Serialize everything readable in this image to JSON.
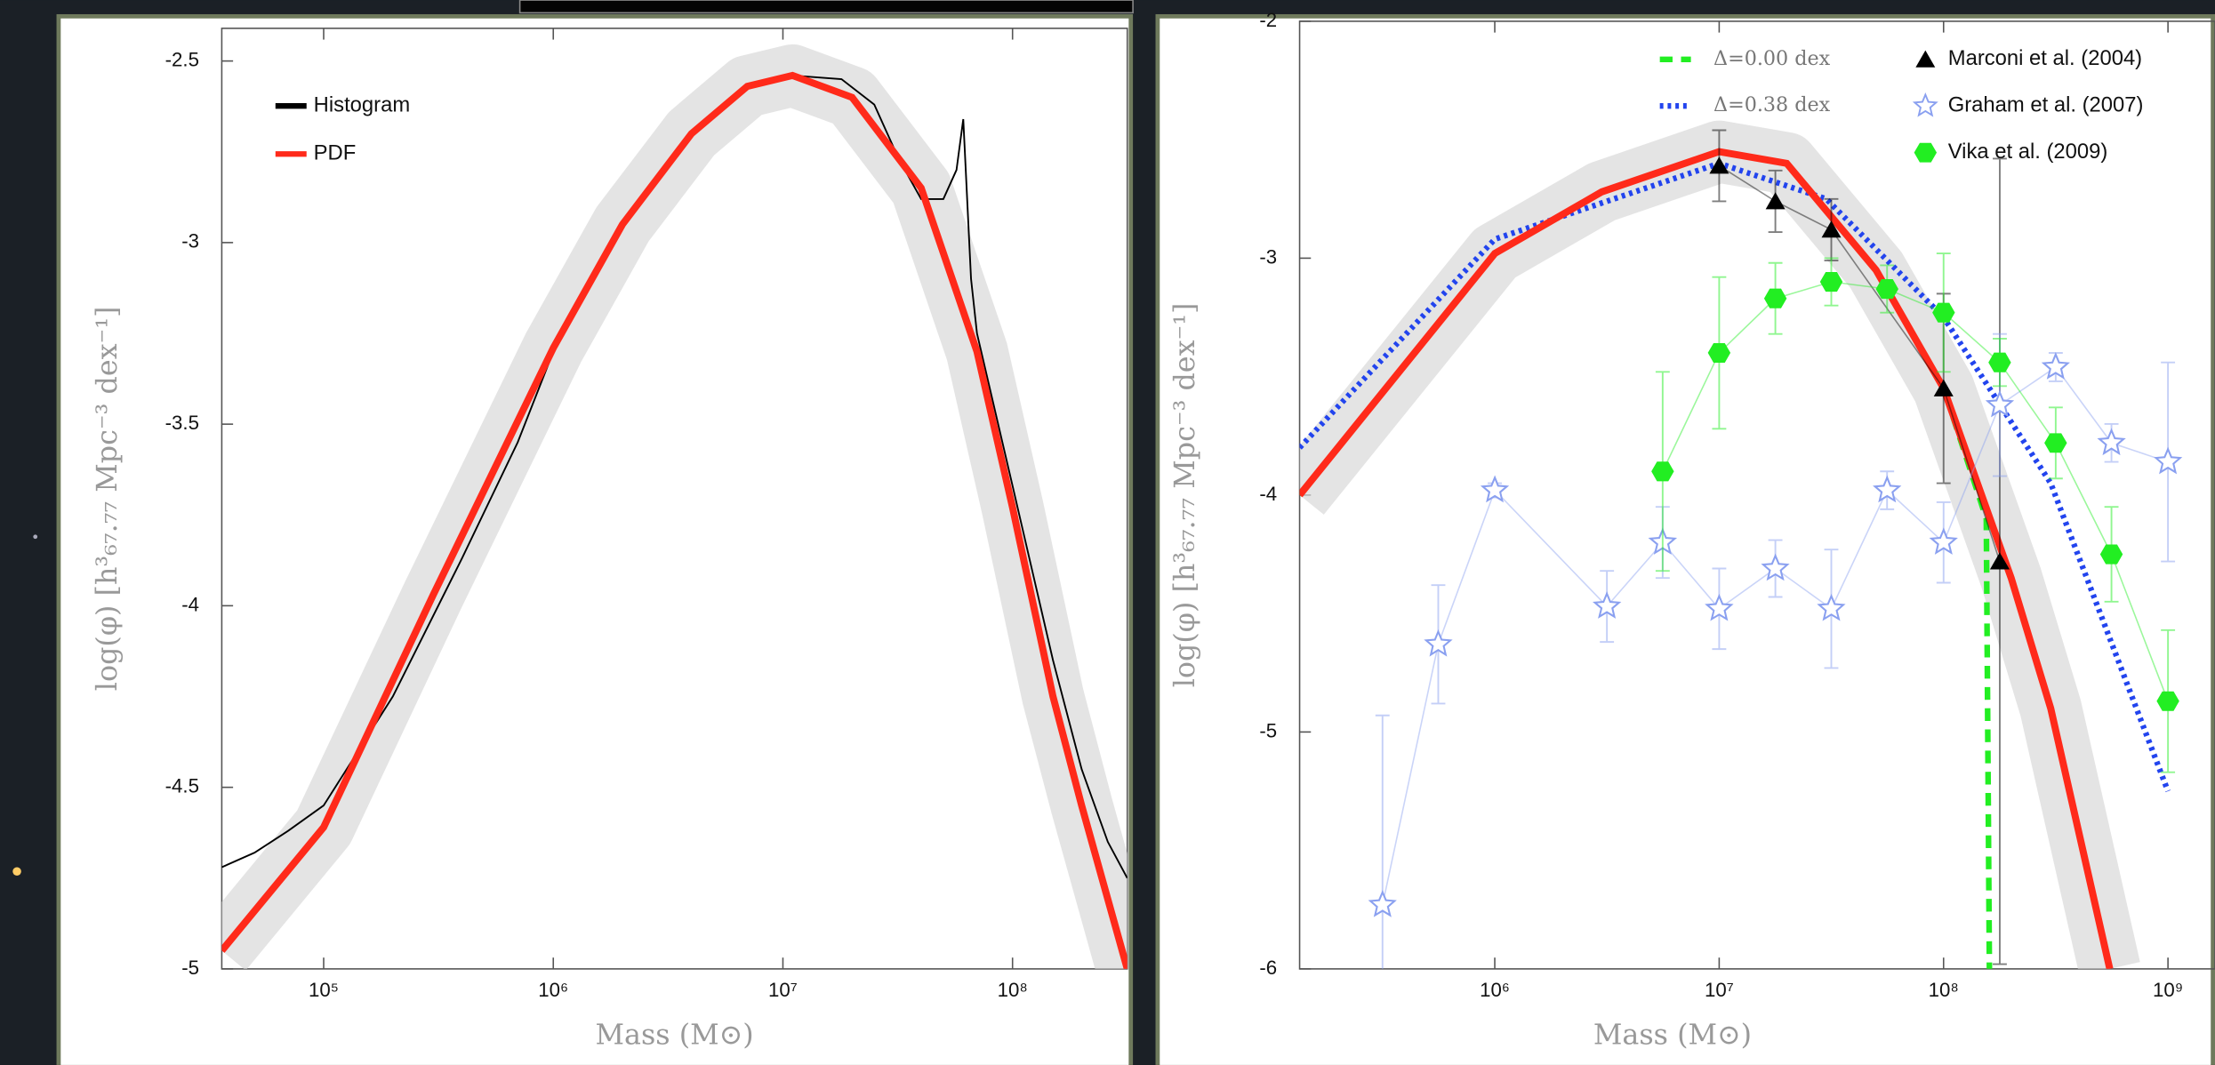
{
  "chart_data": [
    {
      "type": "line",
      "xscale": "log",
      "xlim": [
        36000,
        316000000
      ],
      "ylim": [
        -5,
        -2.41
      ],
      "xticks": [
        {
          "value": 100000,
          "label": "10⁵"
        },
        {
          "value": 1000000,
          "label": "10⁶"
        },
        {
          "value": 10000000,
          "label": "10⁷"
        },
        {
          "value": 100000000,
          "label": "10⁸"
        }
      ],
      "yticks": [
        -2.5,
        -3,
        -3.5,
        -4,
        -4.5,
        -5
      ],
      "xlabel": "Mass (M⊙)",
      "ylabel": "log(φ)  [h³₆₇.₇₇  Mpc⁻³  dex⁻¹]",
      "series": [
        {
          "name": "Histogram",
          "color": "#000000",
          "style": "solid",
          "x": [
            36000,
            50000,
            70000,
            100000,
            200000,
            400000,
            700000,
            1000000,
            2000000,
            4000000,
            7000000,
            11000000,
            18000000,
            25000000,
            32000000,
            40000000,
            50000000,
            57000000,
            61000000,
            66000000,
            70000000,
            100000000,
            150000000,
            200000000,
            260000000,
            316000000
          ],
          "values": [
            -4.72,
            -4.68,
            -4.62,
            -4.55,
            -4.25,
            -3.87,
            -3.55,
            -3.3,
            -2.95,
            -2.7,
            -2.57,
            -2.54,
            -2.55,
            -2.62,
            -2.77,
            -2.88,
            -2.88,
            -2.8,
            -2.66,
            -3.1,
            -3.25,
            -3.67,
            -4.15,
            -4.45,
            -4.65,
            -4.75
          ]
        },
        {
          "name": "PDF",
          "color": "#ff2a1a",
          "style": "solid",
          "band": true,
          "x": [
            36000,
            100000,
            300000,
            1000000,
            2000000,
            4000000,
            7000000,
            11000000,
            20000000,
            40000000,
            70000000,
            100000000,
            150000000,
            200000000,
            316000000
          ],
          "values": [
            -4.95,
            -4.61,
            -3.97,
            -3.29,
            -2.95,
            -2.7,
            -2.57,
            -2.54,
            -2.6,
            -2.85,
            -3.3,
            -3.73,
            -4.25,
            -4.55,
            -5.0
          ]
        }
      ]
    },
    {
      "type": "line",
      "xscale": "log",
      "xlim": [
        135000,
        1620000000
      ],
      "ylim": [
        -6,
        -2
      ],
      "xticks": [
        {
          "value": 1000000,
          "label": "10⁶"
        },
        {
          "value": 10000000,
          "label": "10⁷"
        },
        {
          "value": 100000000,
          "label": "10⁸"
        },
        {
          "value": 1000000000,
          "label": "10⁹"
        }
      ],
      "yticks": [
        -2,
        -3,
        -4,
        -5,
        -6
      ],
      "xlabel": "Mass (M⊙)",
      "ylabel": "log(φ)  [h³₆₇.₇₇  Mpc⁻³  dex⁻¹]",
      "series": [
        {
          "name": "Δ=0.00 dex",
          "color": "#22ee22",
          "style": "dashed",
          "x": [
            135000,
            1000000,
            3000000,
            10000000,
            20000000,
            50000000,
            100000000,
            155000000,
            160000000
          ],
          "values": [
            -4.0,
            -2.98,
            -2.72,
            -2.55,
            -2.6,
            -3.05,
            -3.55,
            -4.1,
            -6
          ]
        },
        {
          "name": "Δ=0.38 dex",
          "color": "#2244ee",
          "style": "dotted",
          "x": [
            135000,
            1000000,
            10000000,
            30000000,
            100000000,
            300000000,
            1000000000
          ],
          "values": [
            -3.8,
            -2.92,
            -2.6,
            -2.75,
            -3.25,
            -3.95,
            -5.25
          ]
        },
        {
          "color": "#ff2a1a",
          "style": "solid",
          "band": true,
          "x": [
            135000,
            1000000,
            3000000,
            10000000,
            20000000,
            50000000,
            100000000,
            200000000,
            300000000,
            550000000
          ],
          "values": [
            -4.0,
            -2.98,
            -2.72,
            -2.55,
            -2.6,
            -3.05,
            -3.55,
            -4.35,
            -4.9,
            -6
          ]
        },
        {
          "name": "Marconi et al. (2004)",
          "color": "#000000",
          "marker": "triangle",
          "x": [
            10000000,
            17800000,
            31600000,
            100000000,
            178000000
          ],
          "values": [
            -2.61,
            -2.76,
            -2.88,
            -3.55,
            -4.28
          ],
          "errors": [
            0.15,
            0.13,
            0.13,
            0.4,
            1.7
          ]
        },
        {
          "name": "Graham et al. (2007)",
          "color": "#8aa0f0",
          "marker": "star",
          "x": [
            316000,
            560000,
            1000000,
            3160000,
            5600000,
            10000000,
            17800000,
            31600000,
            56000000,
            100000000,
            178000000,
            316000000,
            560000000,
            1000000000
          ],
          "values": [
            -5.73,
            -4.63,
            -3.98,
            -4.47,
            -4.2,
            -4.48,
            -4.31,
            -4.48,
            -3.98,
            -4.2,
            -3.62,
            -3.46,
            -3.78,
            -3.86
          ],
          "errors": [
            0.8,
            0.25,
            0.03,
            0.15,
            0.15,
            0.17,
            0.12,
            0.25,
            0.08,
            0.17,
            0.3,
            0.06,
            0.08,
            0.42
          ]
        },
        {
          "name": "Vika et al. (2009)",
          "color": "#22ee22",
          "marker": "hexagon",
          "x": [
            5600000,
            10000000,
            17800000,
            31600000,
            56000000,
            100000000,
            178000000,
            316000000,
            560000000,
            1000000000
          ],
          "values": [
            -3.9,
            -3.4,
            -3.17,
            -3.1,
            -3.13,
            -3.23,
            -3.44,
            -3.78,
            -4.25,
            -4.87
          ],
          "errors": [
            0.42,
            0.32,
            0.15,
            0.1,
            0.1,
            0.25,
            0.1,
            0.15,
            0.2,
            0.3
          ]
        }
      ]
    }
  ]
}
